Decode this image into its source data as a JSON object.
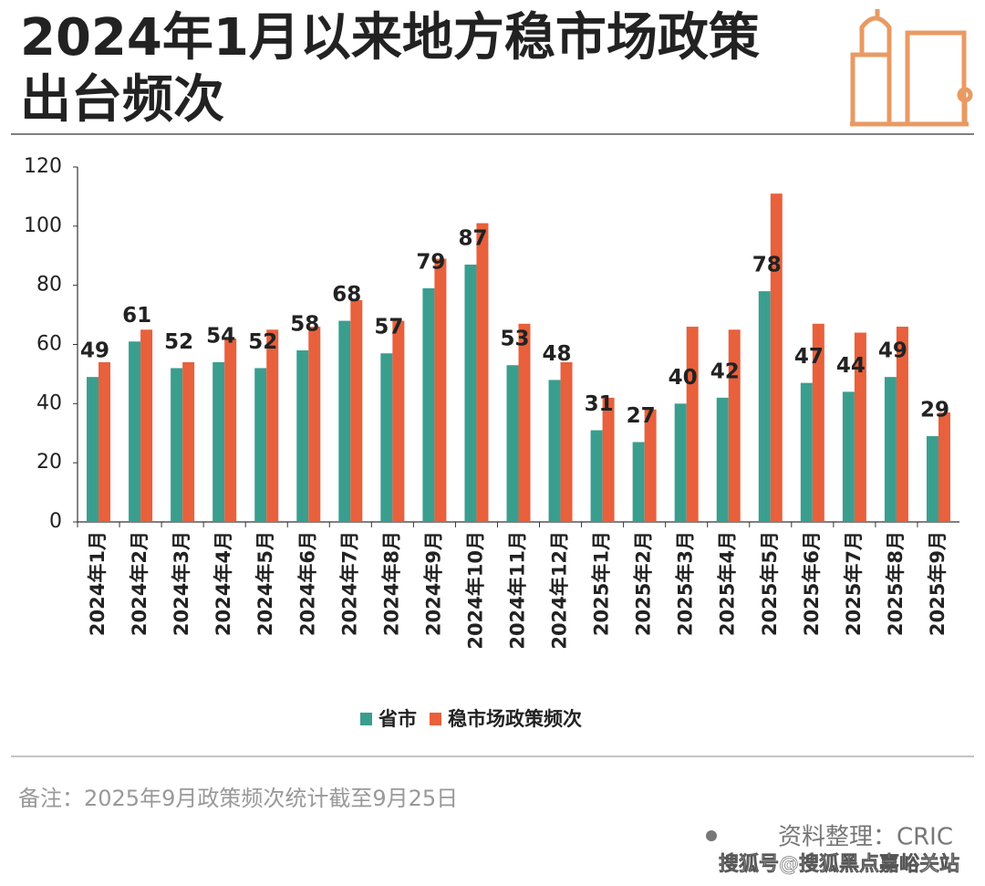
{
  "chart_data": {
    "type": "bar",
    "title": "2024年1月以来地方稳市场政策出台频次",
    "categories": [
      "2024年1月",
      "2024年2月",
      "2024年3月",
      "2024年4月",
      "2024年5月",
      "2024年6月",
      "2024年7月",
      "2024年8月",
      "2024年9月",
      "2024年10月",
      "2024年11月",
      "2024年12月",
      "2025年1月",
      "2025年2月",
      "2025年3月",
      "2025年4月",
      "2025年5月",
      "2025年6月",
      "2025年7月",
      "2025年8月",
      "2025年9月"
    ],
    "series": [
      {
        "name": "省市",
        "color": "#3a9e8f",
        "values": [
          49,
          61,
          52,
          54,
          52,
          58,
          68,
          57,
          79,
          87,
          53,
          48,
          31,
          27,
          40,
          42,
          78,
          47,
          44,
          49,
          29
        ]
      },
      {
        "name": "稳市场政策频次",
        "color": "#e8603c",
        "values": [
          54,
          65,
          54,
          62,
          65,
          66,
          75,
          68,
          89,
          101,
          67,
          54,
          42,
          38,
          66,
          65,
          111,
          67,
          64,
          66,
          37
        ]
      }
    ],
    "data_labels_series": 0,
    "ylim": [
      0,
      120
    ],
    "yticks": [
      0,
      20,
      40,
      60,
      80,
      100,
      120
    ],
    "grid": false,
    "legend": "bottom",
    "note": "备注：2025年9月政策频次统计截至9月25日",
    "source": "资料整理：CRIC",
    "watermark": "搜狐号@搜狐黑点嘉峪关站"
  }
}
